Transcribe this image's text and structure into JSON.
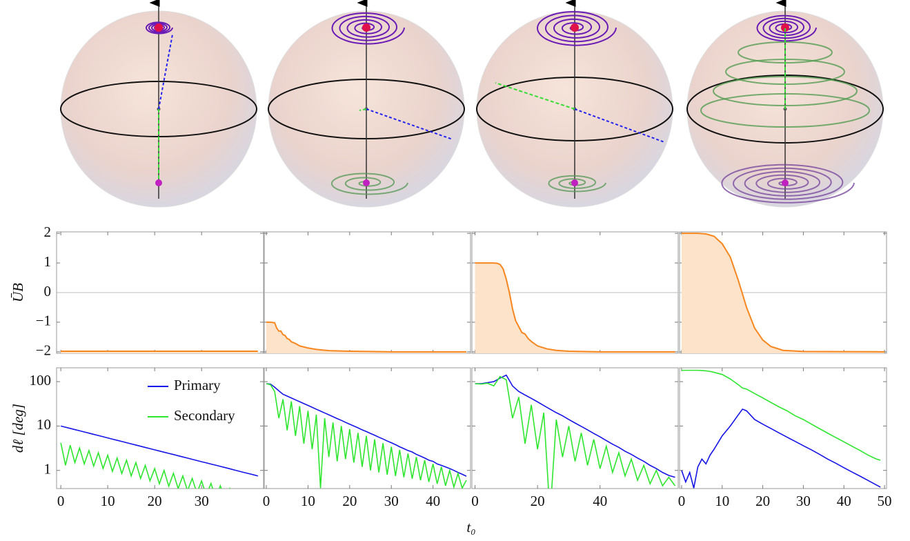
{
  "chart_data": [
    {
      "type": "area",
      "ylabel": "ŪB",
      "show_ytick_labels": true,
      "show_xtick_labels": false,
      "color": "#f7861f",
      "fill": "#fde3ca",
      "zero_line": true,
      "xlim": [
        -0.9,
        43.2
      ],
      "xticks": [
        0,
        10,
        20,
        30
      ],
      "ylim": [
        -2.05,
        2.05
      ],
      "yticks": [
        {
          "value": -2,
          "label": "−2"
        },
        {
          "value": -1,
          "label": "−1"
        },
        0,
        1,
        2
      ],
      "x": [
        0,
        42
      ],
      "values": [
        -1.98,
        -1.98
      ]
    },
    {
      "type": "area",
      "show_ytick_labels": false,
      "show_xtick_labels": false,
      "color": "#f7861f",
      "fill": "#fde3ca",
      "zero_line": true,
      "xlim": [
        -0.5,
        49
      ],
      "xticks": [
        0,
        10,
        20,
        30,
        40
      ],
      "ylim": [
        -2.05,
        2.05
      ],
      "yticks": [
        -2,
        -1,
        0,
        1,
        2
      ],
      "x": [
        0,
        1,
        2,
        2.5,
        3,
        3.5,
        4,
        4.5,
        5,
        5.5,
        6,
        7,
        8,
        10,
        12,
        15,
        20,
        25,
        30,
        48
      ],
      "values": [
        -1,
        -1,
        -1.02,
        -1.2,
        -1.3,
        -1.3,
        -1.42,
        -1.45,
        -1.55,
        -1.58,
        -1.66,
        -1.72,
        -1.8,
        -1.87,
        -1.92,
        -1.96,
        -1.98,
        -1.99,
        -2,
        -2
      ]
    },
    {
      "type": "area",
      "show_ytick_labels": false,
      "show_xtick_labels": false,
      "color": "#f7861f",
      "fill": "#fde3ca",
      "zero_line": true,
      "xlim": [
        -1,
        65
      ],
      "xticks": [
        0,
        20,
        40
      ],
      "ylim": [
        -2.05,
        2.05
      ],
      "yticks": [
        -2,
        -1,
        0,
        1,
        2
      ],
      "x": [
        0,
        6,
        7,
        8,
        9,
        10,
        11,
        12,
        13,
        14,
        15,
        16,
        17,
        18,
        20,
        23,
        26,
        30,
        40,
        64
      ],
      "values": [
        1,
        1,
        0.99,
        0.95,
        0.8,
        0.45,
        0,
        -0.55,
        -0.95,
        -1.15,
        -1.35,
        -1.4,
        -1.55,
        -1.65,
        -1.8,
        -1.9,
        -1.95,
        -1.98,
        -2,
        -2
      ]
    },
    {
      "type": "area",
      "show_ytick_labels": false,
      "show_xtick_labels": false,
      "color": "#f7861f",
      "fill": "#fde3ca",
      "zero_line": true,
      "xlim": [
        -0.5,
        50.5
      ],
      "xticks": [
        0,
        10,
        20,
        30,
        40,
        50
      ],
      "ylim": [
        -2.05,
        2.05
      ],
      "yticks": [
        -2,
        -1,
        0,
        1,
        2
      ],
      "x": [
        0,
        4,
        6,
        8,
        10,
        12,
        14,
        16,
        18,
        20,
        22,
        25,
        30,
        50
      ],
      "values": [
        2,
        2,
        1.98,
        1.9,
        1.65,
        1.2,
        0.4,
        -0.5,
        -1.2,
        -1.6,
        -1.82,
        -1.95,
        -1.99,
        -2
      ]
    },
    {
      "type": "line",
      "log_scale": true,
      "ylabel": "dℓ [deg]",
      "xlabel": "t₀",
      "legend": "upper right",
      "show_ytick_labels": true,
      "show_xtick_labels": true,
      "xlim": [
        -0.9,
        43.2
      ],
      "xticks": [
        0,
        10,
        20,
        30
      ],
      "ylim": [
        0.39,
        205
      ],
      "yticks": [
        1,
        10,
        100
      ],
      "x": [
        0,
        1,
        2,
        3,
        4,
        5,
        6,
        7,
        8,
        9,
        10,
        11,
        12,
        13,
        14,
        15,
        16,
        17,
        18,
        19,
        20,
        21,
        22,
        23,
        24,
        25,
        26,
        27,
        28,
        29,
        30,
        31,
        32,
        33,
        34,
        35,
        36,
        37,
        38,
        39,
        40,
        41,
        42
      ],
      "series": [
        {
          "name": "Primary",
          "color": "#1414e6",
          "values": [
            10,
            9.4,
            8.84,
            8.31,
            7.81,
            7.35,
            6.91,
            6.49,
            6.11,
            5.74,
            5.4,
            5.07,
            4.77,
            4.49,
            4.22,
            3.96,
            3.73,
            3.5,
            3.29,
            3.1,
            2.91,
            2.74,
            2.57,
            2.42,
            2.28,
            2.14,
            2.01,
            1.89,
            1.78,
            1.67,
            1.57,
            1.48,
            1.39,
            1.31,
            1.23,
            1.16,
            1.09,
            1.02,
            0.96,
            0.9,
            0.85,
            0.8,
            0.75
          ]
        },
        {
          "name": "Secondary",
          "color": "#2ee62e",
          "values": [
            4.2,
            1.3,
            3.7,
            1.5,
            3.2,
            1.4,
            2.8,
            1.25,
            2.5,
            1.1,
            2.2,
            0.95,
            1.9,
            0.85,
            1.7,
            0.75,
            1.5,
            0.66,
            1.3,
            0.58,
            1.1,
            0.5,
            1.0,
            0.44,
            0.86,
            0.39,
            0.75,
            0.35,
            0.66,
            0.31,
            0.58,
            0.27,
            0.51,
            0.24,
            0.45,
            0.21,
            0.39,
            0.2,
            null,
            null,
            null,
            null,
            null
          ]
        }
      ]
    },
    {
      "type": "line",
      "log_scale": true,
      "show_ytick_labels": false,
      "show_xtick_labels": true,
      "xlim": [
        -0.5,
        49
      ],
      "xticks": [
        0,
        10,
        20,
        30,
        40
      ],
      "ylim": [
        0.39,
        205
      ],
      "yticks": [
        1,
        10,
        100
      ],
      "x": [
        0,
        1,
        2,
        3,
        4,
        5,
        6,
        7,
        8,
        9,
        10,
        11,
        12,
        13,
        14,
        15,
        16,
        17,
        18,
        19,
        20,
        21,
        22,
        23,
        24,
        25,
        26,
        27,
        28,
        29,
        30,
        31,
        32,
        33,
        34,
        35,
        36,
        37,
        38,
        39,
        40,
        41,
        42,
        43,
        44,
        45,
        46,
        47,
        48
      ],
      "series": [
        {
          "name": "Primary",
          "color": "#1414e6",
          "values": [
            90,
            88,
            75,
            62,
            52,
            47.2,
            42.8,
            38.9,
            35.3,
            32,
            29.1,
            26.4,
            23.9,
            21.7,
            19.7,
            17.9,
            16.2,
            14.7,
            13.4,
            12.1,
            11,
            10,
            9.1,
            8.2,
            7.5,
            6.8,
            6.2,
            5.6,
            5.1,
            4.6,
            4.2,
            3.8,
            3.4,
            3.1,
            2.8,
            2.6,
            2.3,
            2.1,
            1.9,
            1.7,
            1.6,
            1.4,
            1.3,
            1.2,
            1.1,
            1,
            0.9,
            0.82,
            0.74
          ]
        },
        {
          "name": "Secondary",
          "color": "#2ee62e",
          "values": [
            90,
            85,
            60,
            15,
            40,
            8,
            36,
            6,
            28,
            4,
            22,
            3,
            18,
            0.4,
            15,
            2,
            12,
            1.6,
            10,
            1.8,
            8.5,
            1.5,
            7,
            1.2,
            6,
            1,
            5,
            0.9,
            4.1,
            0.8,
            3.4,
            0.75,
            2.9,
            0.7,
            2.4,
            0.65,
            2,
            0.6,
            1.7,
            0.55,
            1.4,
            0.5,
            1.2,
            0.45,
            1,
            0.42,
            0.85,
            0.4,
            0.6
          ]
        }
      ]
    },
    {
      "type": "line",
      "log_scale": true,
      "show_ytick_labels": false,
      "show_xtick_labels": true,
      "xlim": [
        -1,
        65
      ],
      "xticks": [
        0,
        20,
        40
      ],
      "ylim": [
        0.39,
        205
      ],
      "yticks": [
        1,
        10,
        100
      ],
      "x": [
        0,
        2,
        4,
        6,
        8,
        10,
        12,
        14,
        16,
        18,
        20,
        22,
        24,
        26,
        28,
        30,
        32,
        34,
        36,
        38,
        40,
        42,
        44,
        46,
        48,
        50,
        52,
        54,
        56,
        58,
        60,
        62,
        64
      ],
      "series": [
        {
          "name": "Primary",
          "color": "#1414e6",
          "values": [
            90,
            90,
            95,
            100,
            120,
            140,
            80,
            60,
            50,
            42,
            35,
            29,
            24,
            20,
            17,
            14,
            11.7,
            9.8,
            8.2,
            6.8,
            5.7,
            4.7,
            3.9,
            3.3,
            2.7,
            2.3,
            1.9,
            1.6,
            1.3,
            1.1,
            0.9,
            0.77,
            0.7
          ]
        },
        {
          "name": "Secondary",
          "color": "#2ee62e",
          "values": [
            90,
            88,
            92,
            80,
            130,
            110,
            15,
            45,
            4,
            30,
            3,
            20,
            0.1,
            14,
            2,
            10,
            1.6,
            7,
            1.3,
            5,
            1.1,
            3.5,
            0.9,
            2.5,
            0.75,
            1.8,
            0.6,
            1.3,
            0.5,
            1,
            0.45,
            0.7,
            0.45
          ]
        }
      ]
    },
    {
      "type": "line",
      "log_scale": true,
      "show_ytick_labels": false,
      "show_xtick_labels": true,
      "xlim": [
        -0.5,
        50.5
      ],
      "xticks": [
        0,
        10,
        20,
        30,
        40,
        50
      ],
      "ylim": [
        0.39,
        205
      ],
      "yticks": [
        1,
        10,
        100
      ],
      "x": [
        0,
        1,
        2,
        3,
        4,
        5,
        6,
        7,
        8,
        10,
        12,
        14,
        15,
        16,
        18,
        20,
        22,
        24,
        26,
        28,
        30,
        32,
        34,
        36,
        38,
        40,
        42,
        44,
        46,
        48,
        49
      ],
      "series": [
        {
          "name": "Primary",
          "color": "#1414e6",
          "values": [
            1,
            0.55,
            0.9,
            0.4,
            1.2,
            1.8,
            1.4,
            2.2,
            3,
            6,
            10,
            18,
            24,
            22,
            14,
            11,
            8.8,
            7,
            5.6,
            4.5,
            3.6,
            2.9,
            2.3,
            1.8,
            1.45,
            1.15,
            0.92,
            0.74,
            0.59,
            0.47,
            0.42
          ]
        },
        {
          "name": "Secondary",
          "color": "#2ee62e",
          "values": [
            180,
            180,
            180,
            180,
            180,
            178,
            175,
            170,
            162,
            145,
            115,
            85,
            72,
            68,
            54,
            43,
            34,
            27,
            22,
            17,
            14,
            11,
            8.7,
            6.9,
            5.5,
            4.4,
            3.5,
            2.8,
            2.2,
            1.8,
            1.7
          ]
        }
      ]
    }
  ]
}
